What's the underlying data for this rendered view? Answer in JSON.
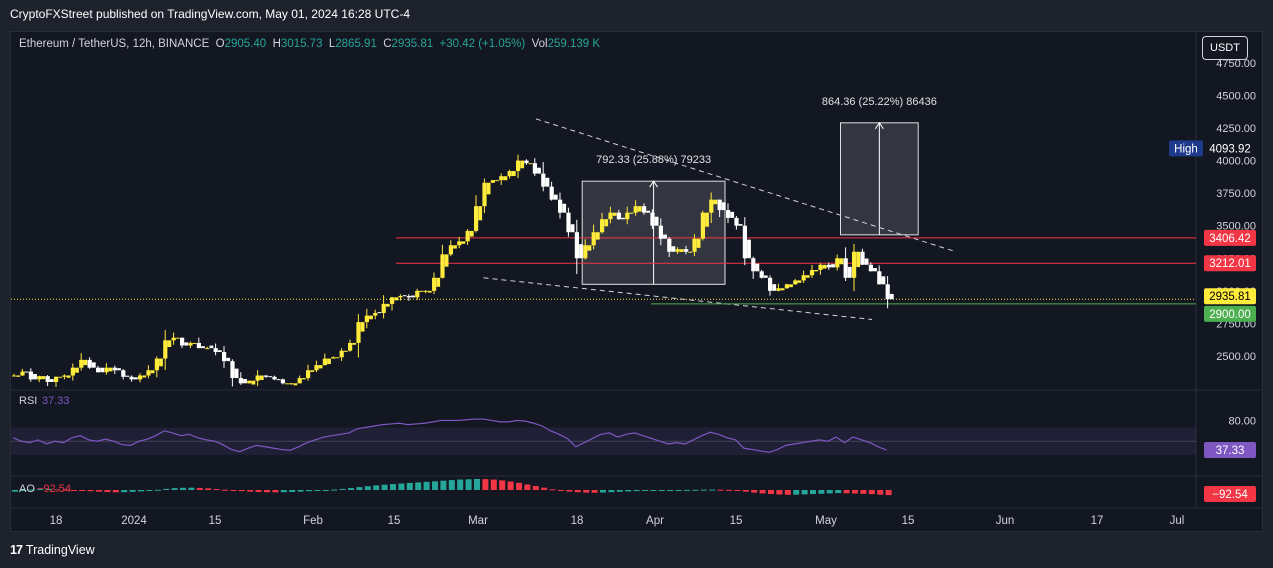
{
  "header": {
    "published": "CryptoFXStreet published on TradingView.com, May 01, 2024 16:28 UTC-4"
  },
  "legend": {
    "symbol": "Ethereum / TetherUS, 12h, BINANCE",
    "o_label": "O",
    "o_value": "2905.40",
    "h_label": "H",
    "h_value": "3015.73",
    "l_label": "L",
    "l_value": "2865.91",
    "c_label": "C",
    "c_value": "2935.81",
    "change": "+30.42 (+1.05%)",
    "vol_label": "Vol",
    "vol_value": "259.139 K"
  },
  "currency_button": "USDT",
  "footer": {
    "brand": "TradingView",
    "logo_mark": "17"
  },
  "colors": {
    "up": "#ffeb3b",
    "down": "#ffffff",
    "resistance": "#f23645",
    "support": "#4caf50",
    "rsi": "#7e57c2",
    "ao_up": "#26a69a",
    "ao_down": "#f23645",
    "label_high": "#1e3a8a"
  },
  "chart_data": {
    "type": "candlestick",
    "price_axis": {
      "ticks": [
        "2500.00",
        "2750.00",
        "3000.00",
        "3250.00",
        "3500.00",
        "3750.00",
        "4000.00",
        "4250.00",
        "4500.00",
        "4750.00"
      ],
      "range": [
        2300,
        4780
      ]
    },
    "time_axis": {
      "ticks": [
        "18",
        "2024",
        "15",
        "Feb",
        "15",
        "Mar",
        "18",
        "Apr",
        "15",
        "May",
        "15",
        "Jun",
        "17",
        "Jul"
      ]
    },
    "close_path": [
      [
        0,
        2350
      ],
      [
        4,
        2380
      ],
      [
        8,
        2320
      ],
      [
        12,
        2345
      ],
      [
        16,
        2300
      ],
      [
        20,
        2340
      ],
      [
        24,
        2350
      ],
      [
        28,
        2410
      ],
      [
        32,
        2470
      ],
      [
        36,
        2410
      ],
      [
        40,
        2375
      ],
      [
        44,
        2410
      ],
      [
        48,
        2390
      ],
      [
        52,
        2340
      ],
      [
        56,
        2320
      ],
      [
        60,
        2350
      ],
      [
        64,
        2390
      ],
      [
        68,
        2480
      ],
      [
        72,
        2620
      ],
      [
        76,
        2640
      ],
      [
        80,
        2580
      ],
      [
        84,
        2600
      ],
      [
        88,
        2560
      ],
      [
        92,
        2560
      ],
      [
        96,
        2530
      ],
      [
        100,
        2460
      ],
      [
        104,
        2330
      ],
      [
        108,
        2290
      ],
      [
        112,
        2310
      ],
      [
        116,
        2350
      ],
      [
        120,
        2340
      ],
      [
        124,
        2320
      ],
      [
        128,
        2290
      ],
      [
        132,
        2290
      ],
      [
        136,
        2330
      ],
      [
        140,
        2390
      ],
      [
        144,
        2430
      ],
      [
        148,
        2480
      ],
      [
        152,
        2490
      ],
      [
        156,
        2540
      ],
      [
        160,
        2600
      ],
      [
        164,
        2760
      ],
      [
        168,
        2810
      ],
      [
        172,
        2830
      ],
      [
        176,
        2900
      ],
      [
        180,
        2950
      ],
      [
        184,
        2960
      ],
      [
        188,
        2950
      ],
      [
        192,
        3000
      ],
      [
        196,
        3000
      ],
      [
        200,
        3100
      ],
      [
        204,
        3280
      ],
      [
        208,
        3350
      ],
      [
        212,
        3380
      ],
      [
        216,
        3460
      ],
      [
        220,
        3650
      ],
      [
        224,
        3830
      ],
      [
        228,
        3850
      ],
      [
        232,
        3880
      ],
      [
        236,
        3920
      ],
      [
        240,
        4000
      ],
      [
        244,
        3980
      ],
      [
        248,
        3900
      ],
      [
        252,
        3800
      ],
      [
        256,
        3700
      ],
      [
        260,
        3600
      ],
      [
        264,
        3450
      ],
      [
        268,
        3250
      ],
      [
        272,
        3350
      ],
      [
        276,
        3450
      ],
      [
        280,
        3550
      ],
      [
        284,
        3600
      ],
      [
        288,
        3550
      ],
      [
        292,
        3600
      ],
      [
        296,
        3650
      ],
      [
        300,
        3600
      ],
      [
        304,
        3500
      ],
      [
        308,
        3400
      ],
      [
        312,
        3300
      ],
      [
        316,
        3320
      ],
      [
        320,
        3300
      ],
      [
        324,
        3400
      ],
      [
        328,
        3600
      ],
      [
        332,
        3700
      ],
      [
        336,
        3620
      ],
      [
        340,
        3560
      ],
      [
        344,
        3500
      ],
      [
        348,
        3250
      ],
      [
        352,
        3150
      ],
      [
        356,
        3100
      ],
      [
        360,
        3000
      ],
      [
        364,
        3020
      ],
      [
        368,
        3050
      ],
      [
        372,
        3080
      ],
      [
        376,
        3120
      ],
      [
        380,
        3160
      ],
      [
        384,
        3200
      ],
      [
        388,
        3180
      ],
      [
        392,
        3250
      ],
      [
        396,
        3100
      ],
      [
        400,
        3300
      ],
      [
        404,
        3200
      ],
      [
        408,
        3150
      ],
      [
        412,
        3050
      ],
      [
        416,
        2935.81
      ]
    ],
    "levels": [
      {
        "label": "3406.42",
        "value": 3406.42,
        "kind": "resistance"
      },
      {
        "label": "3212.01",
        "value": 3212.01,
        "kind": "resistance"
      },
      {
        "label": "2900.00",
        "value": 2900.0,
        "kind": "support"
      },
      {
        "label": "2935.81",
        "value": 2935.81,
        "kind": "last"
      }
    ],
    "high_label": {
      "text": "High",
      "value_label": "4093.92",
      "value": 4093.92
    },
    "annotations": [
      {
        "text": "792.33 (25.88%) 79233",
        "x1": 272,
        "x2": 340,
        "y1": 3050,
        "y2": 3842
      },
      {
        "text": "864.36 (25.22%) 86436",
        "x1": 395,
        "x2": 432,
        "y1": 3430,
        "y2": 4290
      }
    ],
    "channel": {
      "upper": [
        [
          250,
          4320
        ],
        [
          450,
          3300
        ]
      ],
      "lower": [
        [
          225,
          3100
        ],
        [
          410,
          2780
        ]
      ]
    },
    "rsi": {
      "label": "RSI",
      "value_label": "37.33",
      "value": 37.33,
      "ticks": [
        "80.00"
      ],
      "band": [
        30,
        70
      ],
      "values": [
        55,
        50,
        48,
        52,
        46,
        50,
        48,
        55,
        58,
        52,
        50,
        53,
        50,
        45,
        44,
        50,
        53,
        58,
        65,
        62,
        58,
        60,
        55,
        52,
        50,
        45,
        38,
        35,
        40,
        44,
        42,
        40,
        38,
        37,
        42,
        48,
        52,
        56,
        58,
        60,
        62,
        68,
        70,
        72,
        74,
        75,
        76,
        74,
        75,
        76,
        78,
        80,
        80,
        80,
        81,
        82,
        82,
        80,
        78,
        78,
        80,
        79,
        76,
        72,
        65,
        60,
        54,
        42,
        48,
        54,
        60,
        62,
        56,
        60,
        62,
        58,
        54,
        50,
        46,
        48,
        46,
        52,
        58,
        63,
        60,
        55,
        52,
        40,
        38,
        36,
        34,
        38,
        44,
        46,
        48,
        50,
        52,
        50,
        56,
        48,
        56,
        52,
        48,
        42,
        37.33
      ]
    },
    "ao": {
      "label": "AO",
      "value_label": "−92.54",
      "value": -92.54,
      "values": [
        -30,
        -10,
        8,
        18,
        20,
        12,
        5,
        -2,
        -12,
        -22,
        -30,
        -38,
        -42,
        -40,
        -34,
        -25,
        -12,
        4,
        20,
        34,
        40,
        42,
        38,
        30,
        18,
        6,
        -8,
        -20,
        -30,
        -36,
        -40,
        -42,
        -40,
        -36,
        -30,
        -22,
        -14,
        -4,
        8,
        20,
        36,
        52,
        68,
        84,
        96,
        108,
        118,
        128,
        138,
        148,
        158,
        170,
        180,
        190,
        195,
        200,
        198,
        190,
        175,
        155,
        130,
        100,
        72,
        42,
        12,
        -12,
        -28,
        -40,
        -48,
        -50,
        -46,
        -40,
        -32,
        -26,
        -20,
        -16,
        -12,
        -8,
        -4,
        0,
        2,
        4,
        6,
        8,
        6,
        2,
        -10,
        -30,
        -48,
        -62,
        -74,
        -82,
        -86,
        -84,
        -80,
        -74,
        -68,
        -62,
        -56,
        -60,
        -64,
        -70,
        -76,
        -84,
        -92.54
      ]
    }
  }
}
